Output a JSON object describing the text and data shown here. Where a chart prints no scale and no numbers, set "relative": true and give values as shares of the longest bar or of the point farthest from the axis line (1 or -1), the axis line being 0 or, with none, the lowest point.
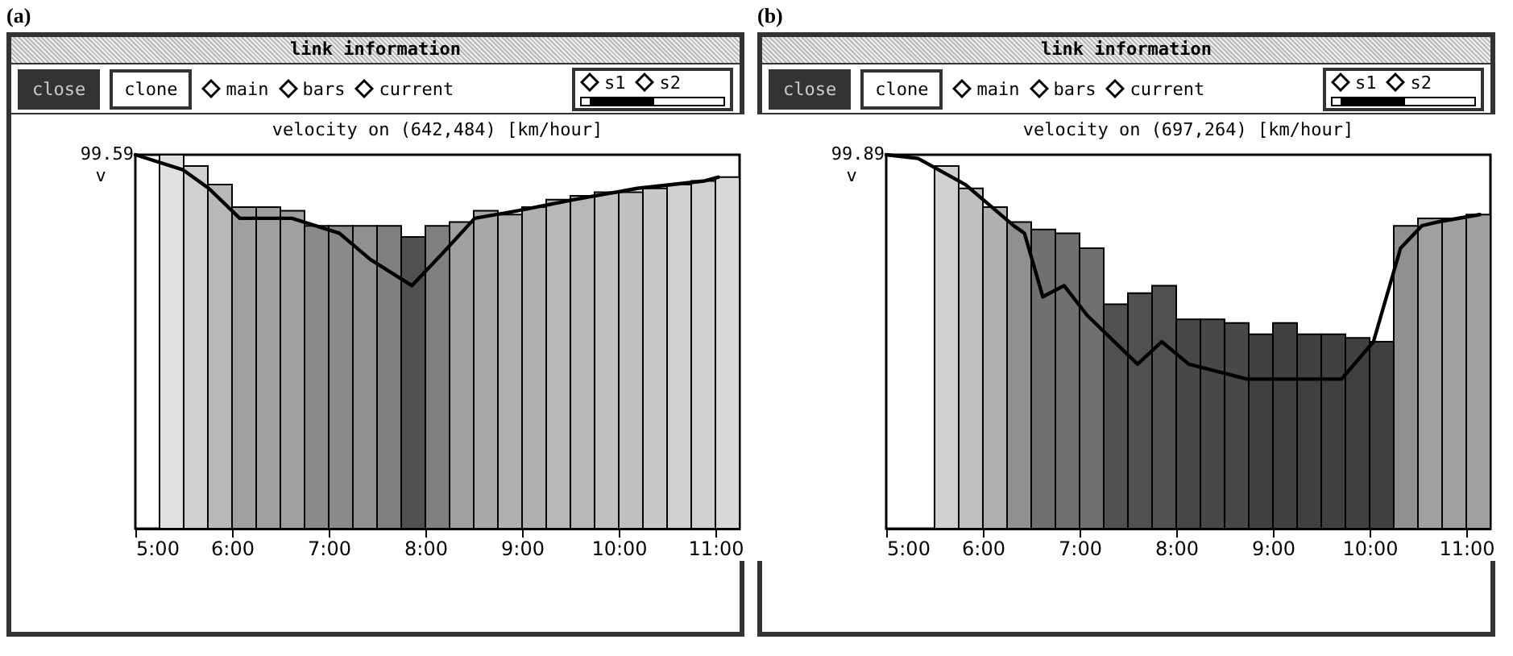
{
  "chart_data": [
    {
      "type": "bar",
      "title": "velocity on (642,484) [km/hour]",
      "ylabel": "v",
      "relative": true,
      "annotations": [
        "(a)",
        "link information",
        "close",
        "clone",
        "main",
        "bars",
        "current",
        "s1",
        "s2",
        {
          "text": "99.59",
          "x": 5,
          "y": 1
        }
      ],
      "x": [
        5.375,
        5.625,
        5.875,
        6.125,
        6.375,
        6.625,
        6.875,
        7.125,
        7.375,
        7.625,
        7.875,
        8.125,
        8.375,
        8.625,
        8.875,
        9.125,
        9.375,
        9.625,
        9.875,
        10.125,
        10.375,
        10.625,
        10.875,
        11.125
      ],
      "xlim": [
        5,
        11.25
      ],
      "xticks": [
        {
          "value": 5,
          "label": "5:00"
        },
        {
          "value": 6,
          "label": "6:00"
        },
        {
          "value": 7,
          "label": "7:00"
        },
        {
          "value": 8,
          "label": "8:00"
        },
        {
          "value": 9,
          "label": "9:00"
        },
        {
          "value": 10,
          "label": "10:00"
        },
        {
          "value": 11,
          "label": "11:00"
        }
      ],
      "series": [
        {
          "values": [
            1.0,
            0.97,
            0.92,
            0.86,
            0.86,
            0.85,
            0.81,
            0.81,
            0.81,
            0.81,
            0.78,
            0.81,
            0.82,
            0.85,
            0.84,
            0.86,
            0.88,
            0.89,
            0.9,
            0.9,
            0.91,
            0.92,
            0.93,
            0.94
          ],
          "colors": [
            "#e0e0e0",
            "#d0d0d0",
            "#b8b8b8",
            "#a0a0a0",
            "#a0a0a0",
            "#a0a0a0",
            "#8a8a8a",
            "#8a8a8a",
            "#909090",
            "#808080",
            "#505050",
            "#808080",
            "#a0a0a0",
            "#a8a8a8",
            "#b0b0b0",
            "#b0b0b0",
            "#b8b8b8",
            "#b8b8b8",
            "#c0c0c0",
            "#c0c0c0",
            "#c8c8c8",
            "#d0d0d0",
            "#d0d0d0",
            "#d8d8d8"
          ]
        },
        {
          "type": "line",
          "color": "#000000",
          "x": [
            5.0,
            5.49,
            5.76,
            6.08,
            6.62,
            7.11,
            7.43,
            7.86,
            8.19,
            8.51,
            8.95,
            9.54,
            10.19,
            10.89,
            11.03
          ],
          "values": [
            1.0,
            0.96,
            0.91,
            0.83,
            0.83,
            0.79,
            0.72,
            0.65,
            0.74,
            0.83,
            0.85,
            0.88,
            0.91,
            0.93,
            0.94
          ]
        }
      ]
    },
    {
      "type": "bar",
      "title": "velocity on (697,264) [km/hour]",
      "ylabel": "v",
      "relative": true,
      "annotations": [
        "(b)",
        "link information",
        "close",
        "clone",
        "main",
        "bars",
        "current",
        "s1",
        "s2",
        {
          "text": "99.89",
          "x": 5,
          "y": 1
        }
      ],
      "x": [
        5.625,
        5.875,
        6.125,
        6.375,
        6.625,
        6.875,
        7.125,
        7.375,
        7.625,
        7.875,
        8.125,
        8.375,
        8.625,
        8.875,
        9.125,
        9.375,
        9.625,
        9.875,
        10.125,
        10.375,
        10.625,
        10.875,
        11.125
      ],
      "xlim": [
        5,
        11.25
      ],
      "xticks": [
        {
          "value": 5,
          "label": "5:00"
        },
        {
          "value": 6,
          "label": "6:00"
        },
        {
          "value": 7,
          "label": "7:00"
        },
        {
          "value": 8,
          "label": "8:00"
        },
        {
          "value": 9,
          "label": "9:00"
        },
        {
          "value": 10,
          "label": "10:00"
        },
        {
          "value": 11,
          "label": "11:00"
        }
      ],
      "series": [
        {
          "values": [
            0.97,
            0.91,
            0.86,
            0.82,
            0.8,
            0.79,
            0.75,
            0.6,
            0.63,
            0.65,
            0.56,
            0.56,
            0.55,
            0.52,
            0.55,
            0.52,
            0.52,
            0.51,
            0.5,
            0.81,
            0.83,
            0.83,
            0.84
          ],
          "colors": [
            "#d0d0d0",
            "#c0c0c0",
            "#b0b0b0",
            "#909090",
            "#707070",
            "#707070",
            "#707070",
            "#505050",
            "#505050",
            "#505050",
            "#484848",
            "#484848",
            "#484848",
            "#404040",
            "#404040",
            "#404040",
            "#404040",
            "#404040",
            "#404040",
            "#909090",
            "#a0a0a0",
            "#a0a0a0",
            "#a0a0a0"
          ]
        },
        {
          "type": "line",
          "color": "#000000",
          "x": [
            5.0,
            5.33,
            5.82,
            6.32,
            6.43,
            6.62,
            6.84,
            7.08,
            7.6,
            7.85,
            8.13,
            8.73,
            9.06,
            9.71,
            10.04,
            10.32,
            10.54,
            10.7,
            11.14
          ],
          "values": [
            1.0,
            0.99,
            0.92,
            0.81,
            0.79,
            0.62,
            0.65,
            0.57,
            0.44,
            0.5,
            0.44,
            0.4,
            0.4,
            0.4,
            0.5,
            0.75,
            0.81,
            0.82,
            0.84
          ]
        }
      ]
    }
  ]
}
